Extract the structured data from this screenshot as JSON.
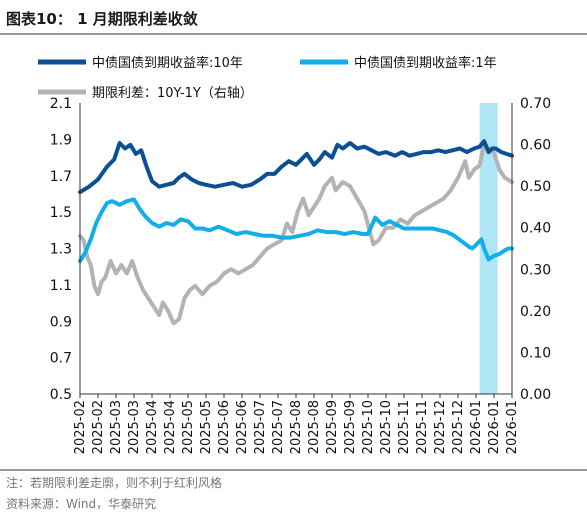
{
  "figure": {
    "title": "图表10： 1 月期限利差收敛",
    "note": "注：若期限利差走廓，则不利于红利风格",
    "source": "资料来源：Wind，华泰研究"
  },
  "colors": {
    "bond10y": "#0c4f94",
    "bond1y": "#12aee8",
    "spread": "#b3b3b3",
    "highlight": "#aee6f6",
    "axis": "#333333"
  },
  "chart_data": {
    "type": "line",
    "title": "图表10： 1 月期限利差收敛",
    "legend": [
      {
        "key": "bond10y",
        "label": "中债国债到期收益率:10年"
      },
      {
        "key": "bond1y",
        "label": "中债国债到期收益率:1年"
      },
      {
        "key": "spread",
        "label": "期限利差：10Y-1Y（右轴）"
      }
    ],
    "x_tick_labels": [
      "2025-02",
      "2025-02",
      "2025-03",
      "2025-03",
      "2025-04",
      "2025-04",
      "2025-05",
      "2025-05",
      "2025-06",
      "2025-06",
      "2025-07",
      "2025-07",
      "2025-08",
      "2025-08",
      "2025-09",
      "2025-09",
      "2025-10",
      "2025-10",
      "2025-11",
      "2025-11",
      "2025-12",
      "2025-12",
      "2026-01",
      "2026-01",
      "2026-01"
    ],
    "x_range": [
      0,
      24
    ],
    "y_left": {
      "min": 0.5,
      "max": 2.1,
      "ticks": [
        "2.1",
        "1.9",
        "1.7",
        "1.5",
        "1.3",
        "1.1",
        "0.9",
        "0.7",
        "0.5"
      ]
    },
    "y_right": {
      "min": 0.0,
      "max": 0.7,
      "ticks": [
        "0.70",
        "0.60",
        "0.50",
        "0.40",
        "0.30",
        "0.20",
        "0.10",
        "0.00"
      ]
    },
    "highlight_x_range": [
      22.2,
      23.2
    ],
    "series": [
      {
        "key": "bond10y",
        "name": "中债国债到期收益率:10年",
        "axis": "left",
        "points": [
          [
            0.0,
            1.61
          ],
          [
            0.5,
            1.64
          ],
          [
            1.0,
            1.68
          ],
          [
            1.5,
            1.75
          ],
          [
            1.9,
            1.79
          ],
          [
            2.2,
            1.88
          ],
          [
            2.5,
            1.85
          ],
          [
            2.8,
            1.87
          ],
          [
            3.1,
            1.82
          ],
          [
            3.4,
            1.84
          ],
          [
            3.7,
            1.75
          ],
          [
            4.0,
            1.67
          ],
          [
            4.4,
            1.64
          ],
          [
            4.8,
            1.65
          ],
          [
            5.2,
            1.66
          ],
          [
            5.5,
            1.69
          ],
          [
            5.8,
            1.71
          ],
          [
            6.2,
            1.68
          ],
          [
            6.6,
            1.66
          ],
          [
            7.0,
            1.65
          ],
          [
            7.5,
            1.64
          ],
          [
            8.0,
            1.65
          ],
          [
            8.5,
            1.66
          ],
          [
            9.0,
            1.64
          ],
          [
            9.5,
            1.65
          ],
          [
            10.0,
            1.68
          ],
          [
            10.4,
            1.71
          ],
          [
            10.8,
            1.71
          ],
          [
            11.2,
            1.75
          ],
          [
            11.6,
            1.78
          ],
          [
            12.0,
            1.76
          ],
          [
            12.3,
            1.79
          ],
          [
            12.6,
            1.82
          ],
          [
            13.0,
            1.76
          ],
          [
            13.3,
            1.79
          ],
          [
            13.6,
            1.83
          ],
          [
            14.0,
            1.8
          ],
          [
            14.3,
            1.87
          ],
          [
            14.6,
            1.85
          ],
          [
            15.0,
            1.88
          ],
          [
            15.4,
            1.85
          ],
          [
            15.8,
            1.86
          ],
          [
            16.2,
            1.84
          ],
          [
            16.6,
            1.82
          ],
          [
            17.0,
            1.83
          ],
          [
            17.5,
            1.81
          ],
          [
            17.9,
            1.83
          ],
          [
            18.3,
            1.81
          ],
          [
            18.7,
            1.82
          ],
          [
            19.1,
            1.83
          ],
          [
            19.5,
            1.83
          ],
          [
            19.9,
            1.84
          ],
          [
            20.3,
            1.83
          ],
          [
            20.7,
            1.84
          ],
          [
            21.1,
            1.85
          ],
          [
            21.5,
            1.83
          ],
          [
            21.9,
            1.85
          ],
          [
            22.2,
            1.86
          ],
          [
            22.45,
            1.89
          ],
          [
            22.7,
            1.83
          ],
          [
            22.9,
            1.85
          ],
          [
            23.1,
            1.85
          ],
          [
            23.4,
            1.83
          ],
          [
            23.7,
            1.82
          ],
          [
            24.0,
            1.81
          ]
        ]
      },
      {
        "key": "bond1y",
        "name": "中债国债到期收益率:1年",
        "axis": "left",
        "points": [
          [
            0.0,
            1.23
          ],
          [
            0.3,
            1.28
          ],
          [
            0.6,
            1.35
          ],
          [
            0.9,
            1.44
          ],
          [
            1.2,
            1.5
          ],
          [
            1.5,
            1.55
          ],
          [
            1.8,
            1.56
          ],
          [
            2.2,
            1.54
          ],
          [
            2.6,
            1.56
          ],
          [
            3.0,
            1.57
          ],
          [
            3.3,
            1.52
          ],
          [
            3.6,
            1.48
          ],
          [
            4.0,
            1.44
          ],
          [
            4.4,
            1.42
          ],
          [
            4.8,
            1.44
          ],
          [
            5.2,
            1.43
          ],
          [
            5.6,
            1.46
          ],
          [
            6.0,
            1.45
          ],
          [
            6.4,
            1.41
          ],
          [
            6.8,
            1.41
          ],
          [
            7.2,
            1.4
          ],
          [
            7.7,
            1.42
          ],
          [
            8.2,
            1.4
          ],
          [
            8.7,
            1.38
          ],
          [
            9.2,
            1.39
          ],
          [
            9.7,
            1.38
          ],
          [
            10.2,
            1.37
          ],
          [
            10.7,
            1.37
          ],
          [
            11.2,
            1.36
          ],
          [
            11.7,
            1.36
          ],
          [
            12.2,
            1.37
          ],
          [
            12.7,
            1.38
          ],
          [
            13.2,
            1.4
          ],
          [
            13.7,
            1.39
          ],
          [
            14.2,
            1.39
          ],
          [
            14.7,
            1.38
          ],
          [
            15.2,
            1.39
          ],
          [
            15.7,
            1.38
          ],
          [
            16.0,
            1.38
          ],
          [
            16.4,
            1.47
          ],
          [
            16.8,
            1.43
          ],
          [
            17.2,
            1.45
          ],
          [
            17.6,
            1.43
          ],
          [
            18.0,
            1.41
          ],
          [
            18.4,
            1.41
          ],
          [
            18.8,
            1.41
          ],
          [
            19.2,
            1.41
          ],
          [
            19.6,
            1.41
          ],
          [
            20.0,
            1.4
          ],
          [
            20.4,
            1.39
          ],
          [
            20.8,
            1.37
          ],
          [
            21.2,
            1.34
          ],
          [
            21.6,
            1.31
          ],
          [
            21.8,
            1.3
          ],
          [
            22.1,
            1.33
          ],
          [
            22.3,
            1.35
          ],
          [
            22.45,
            1.3
          ],
          [
            22.7,
            1.24
          ],
          [
            23.0,
            1.26
          ],
          [
            23.3,
            1.27
          ],
          [
            23.6,
            1.29
          ],
          [
            23.8,
            1.3
          ],
          [
            24.0,
            1.3
          ]
        ]
      },
      {
        "key": "spread",
        "name": "期限利差：10Y-1Y（右轴）",
        "axis": "right",
        "points": [
          [
            0.0,
            0.38
          ],
          [
            0.2,
            0.37
          ],
          [
            0.4,
            0.33
          ],
          [
            0.6,
            0.31
          ],
          [
            0.8,
            0.26
          ],
          [
            1.0,
            0.24
          ],
          [
            1.2,
            0.27
          ],
          [
            1.4,
            0.28
          ],
          [
            1.7,
            0.32
          ],
          [
            2.0,
            0.29
          ],
          [
            2.3,
            0.31
          ],
          [
            2.6,
            0.29
          ],
          [
            2.9,
            0.32
          ],
          [
            3.2,
            0.28
          ],
          [
            3.5,
            0.25
          ],
          [
            3.8,
            0.23
          ],
          [
            4.1,
            0.21
          ],
          [
            4.4,
            0.19
          ],
          [
            4.6,
            0.22
          ],
          [
            4.9,
            0.2
          ],
          [
            5.2,
            0.17
          ],
          [
            5.5,
            0.18
          ],
          [
            5.8,
            0.23
          ],
          [
            6.1,
            0.25
          ],
          [
            6.4,
            0.26
          ],
          [
            6.8,
            0.24
          ],
          [
            7.2,
            0.26
          ],
          [
            7.6,
            0.27
          ],
          [
            8.0,
            0.29
          ],
          [
            8.4,
            0.3
          ],
          [
            8.8,
            0.29
          ],
          [
            9.2,
            0.3
          ],
          [
            9.6,
            0.31
          ],
          [
            10.0,
            0.33
          ],
          [
            10.4,
            0.35
          ],
          [
            10.8,
            0.36
          ],
          [
            11.2,
            0.37
          ],
          [
            11.5,
            0.41
          ],
          [
            11.8,
            0.39
          ],
          [
            12.1,
            0.44
          ],
          [
            12.4,
            0.47
          ],
          [
            12.7,
            0.43
          ],
          [
            13.0,
            0.45
          ],
          [
            13.3,
            0.47
          ],
          [
            13.6,
            0.5
          ],
          [
            14.0,
            0.52
          ],
          [
            14.2,
            0.49
          ],
          [
            14.6,
            0.51
          ],
          [
            15.0,
            0.5
          ],
          [
            15.4,
            0.47
          ],
          [
            15.8,
            0.44
          ],
          [
            16.1,
            0.39
          ],
          [
            16.3,
            0.36
          ],
          [
            16.6,
            0.37
          ],
          [
            17.0,
            0.4
          ],
          [
            17.4,
            0.4
          ],
          [
            17.8,
            0.42
          ],
          [
            18.2,
            0.41
          ],
          [
            18.6,
            0.43
          ],
          [
            19.0,
            0.44
          ],
          [
            19.4,
            0.45
          ],
          [
            19.8,
            0.46
          ],
          [
            20.2,
            0.47
          ],
          [
            20.6,
            0.49
          ],
          [
            21.0,
            0.52
          ],
          [
            21.4,
            0.56
          ],
          [
            21.6,
            0.52
          ],
          [
            21.9,
            0.54
          ],
          [
            22.2,
            0.55
          ],
          [
            22.45,
            0.6
          ],
          [
            22.7,
            0.59
          ],
          [
            23.0,
            0.58
          ],
          [
            23.3,
            0.54
          ],
          [
            23.6,
            0.52
          ],
          [
            24.0,
            0.51
          ]
        ]
      }
    ]
  }
}
